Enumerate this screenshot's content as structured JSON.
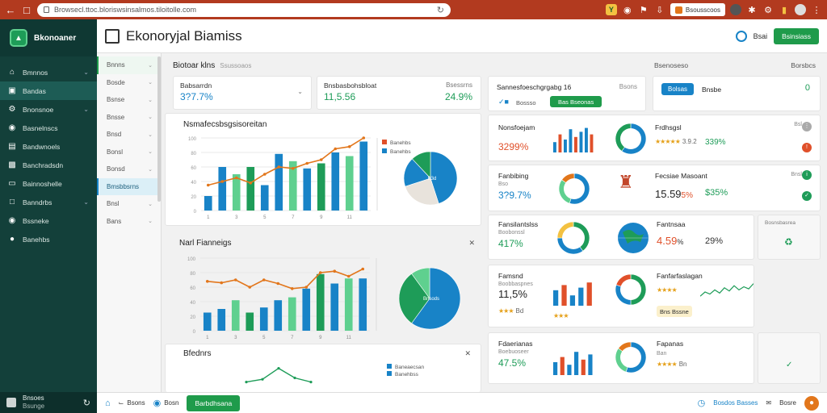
{
  "browser": {
    "url": "Browsecl.ttoc.bloriswsinsalmos.tiloitolle.com",
    "profile_label": "Bsousscoos"
  },
  "sidebar": {
    "brand": "Bkonoaner",
    "items": [
      {
        "label": "Bmnnos",
        "icon": "home-icon"
      },
      {
        "label": "Bandas",
        "icon": "doc-icon"
      },
      {
        "label": "Bnonsnoe",
        "icon": "settings-icon"
      },
      {
        "label": "Basnelnscs",
        "icon": "globe-icon"
      },
      {
        "label": "Bandwnoels",
        "icon": "list-icon"
      },
      {
        "label": "Banchradsdn",
        "icon": "chart-icon"
      },
      {
        "label": "Bainnoshelle",
        "icon": "monitor-icon"
      },
      {
        "label": "Banndrbs",
        "icon": "chart-icon"
      },
      {
        "label": "Bssneke",
        "icon": "shield-icon"
      },
      {
        "label": "Banehbs",
        "icon": "pin-icon"
      }
    ],
    "footer_title": "Bnsoes",
    "footer_sub": "Bsunge"
  },
  "header": {
    "title": "Ekonoryjal Biamiss",
    "link_label": "Bsai",
    "button_label": "Bsinsiass"
  },
  "subnav": {
    "items": [
      "Bnnns",
      "Bosde",
      "Bsnse",
      "Bnsse",
      "Bnsd",
      "Bonsl",
      "Bonsd",
      "Bmsbbsrns",
      "Bnsl",
      "Bans"
    ]
  },
  "main": {
    "section_title": "Biotoar klns",
    "section_sub": "Ssussoaos",
    "kpis": [
      {
        "label": "Babsarrdn",
        "value": "3?7.7%"
      },
      {
        "label": "Bnsbasbohsbloat",
        "value": "11,5.56",
        "right_label": "Bsessrns",
        "right_value": "24.9%"
      }
    ],
    "chart1": {
      "title": "Nsmafecsbsgsisoreitan",
      "legend": [
        "Banehbs",
        "Banehbs"
      ],
      "pie_label": "B3d"
    },
    "chart2": {
      "title": "Narl Fianneigs",
      "pie_label": "Bnsods"
    },
    "chart3": {
      "title": "Bfednrs",
      "legend": [
        "Baneaecsan",
        "Banehbss"
      ]
    }
  },
  "right": {
    "top_title": "Bsenoseso",
    "top_right": "Borsbcs",
    "top_card": {
      "label": "Sannesfoeschgrgabg",
      "num": "16",
      "icon_label": "Bossso",
      "button": "Bas Bseonas",
      "corner": "Bsons"
    },
    "sel_card": {
      "button": "Bolsas",
      "label": "Bnsbe",
      "value": "0"
    },
    "widgets": [
      {
        "label": "Nonsfoejam",
        "value": "3299%",
        "pie_label": "Bd",
        "sub_label": "Frdhsgsl",
        "stars_count": "3.9.2",
        "sub_pct": "339%",
        "corner": "Bsl"
      },
      {
        "label": "Fanbibing",
        "sub": "Bso",
        "value": "3?9.7%",
        "pie_label": "Bnna",
        "sub_label": "Fecsiae Masoant",
        "big": "15.59",
        "sub_pct": "5%",
        "pct": "$35%",
        "corner": "Bnsl"
      },
      {
        "label": "Fansilantslss",
        "sub": "Boobonssl",
        "value": "417%",
        "pie_label": "Bns",
        "sub_label": "Fantnsaa",
        "big": "4.59",
        "sub_pct": "%",
        "pct": "29%",
        "corner": "Bosnsbasrea"
      },
      {
        "label": "Famsnd",
        "sub": "Boobbaspnes",
        "value": "11,5%",
        "stars_count": "Bd",
        "sub_label": "Fanfarfaslagan",
        "tag": "Bns Bssne",
        "corner": "Bosnsoos"
      },
      {
        "label": "Fdaerianas",
        "sub": "Boebuoseer",
        "value": "47.5%",
        "sub_label": "Fapanas",
        "stars_count": "Bn",
        "sub_sub": "Ban"
      }
    ]
  },
  "bottom": {
    "item1": "Bsons",
    "item2": "Bosn",
    "button": "Barbdhsana",
    "right_text": "Bosdos Basses",
    "right_text2": "Bosre"
  },
  "chart_data": [
    {
      "type": "bar",
      "title": "Nsmafecsbsgsisoreitan",
      "categories": [
        "1",
        "2",
        "3",
        "4",
        "5",
        "6",
        "7",
        "8",
        "9",
        "10",
        "11",
        "12"
      ],
      "series": [
        {
          "name": "Banehbs",
          "values": [
            0.2,
            0.6,
            0.5,
            0.6,
            0.35,
            0.78,
            0.68,
            0.58,
            0.65,
            0.8,
            0.75,
            0.95
          ]
        }
      ],
      "line": [
        0.35,
        0.4,
        0.45,
        0.38,
        0.5,
        0.6,
        0.58,
        0.65,
        0.7,
        0.85,
        0.88,
        1.0
      ],
      "pie": [
        45,
        25,
        18,
        12
      ]
    },
    {
      "type": "bar",
      "title": "Narl Fianneigs",
      "categories": [
        "1",
        "2",
        "3",
        "4",
        "5",
        "6",
        "7",
        "8",
        "9",
        "10",
        "11",
        "12"
      ],
      "series": [
        {
          "name": "Banehbs",
          "values": [
            0.25,
            0.3,
            0.42,
            0.25,
            0.32,
            0.42,
            0.46,
            0.58,
            0.78,
            0.65,
            0.72,
            0.72
          ]
        }
      ],
      "line": [
        0.68,
        0.66,
        0.7,
        0.6,
        0.7,
        0.65,
        0.58,
        0.6,
        0.8,
        0.82,
        0.75,
        0.85
      ],
      "pie": [
        60,
        30,
        10
      ]
    },
    {
      "type": "line",
      "title": "Bfednrs",
      "x": [
        1,
        2,
        3,
        4,
        5
      ],
      "values": [
        0.1,
        0.2,
        0.6,
        0.25,
        0.1
      ]
    }
  ]
}
